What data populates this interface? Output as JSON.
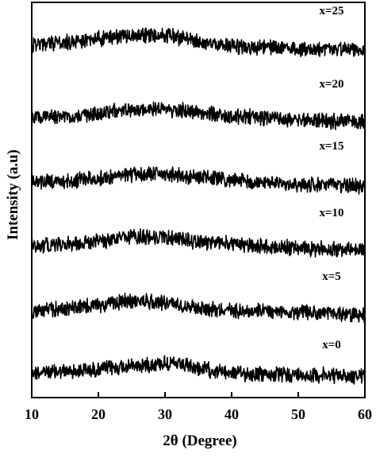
{
  "chart_data": {
    "type": "line",
    "xlabel": "2θ (Degree)",
    "ylabel": "Intensity (a.u)",
    "xlim": [
      10,
      60
    ],
    "x_ticks": [
      10,
      20,
      30,
      40,
      50,
      60
    ],
    "y_ticks": "none",
    "grid": false,
    "stacked_offset": true,
    "noisy_traces": true,
    "line_color": "#000000",
    "series": [
      {
        "name": "x=0",
        "points": [
          [
            10,
            0.3
          ],
          [
            15,
            0.34
          ],
          [
            20,
            0.42
          ],
          [
            25,
            0.55
          ],
          [
            30,
            0.68
          ],
          [
            35,
            0.45
          ],
          [
            40,
            0.28
          ],
          [
            45,
            0.22
          ],
          [
            50,
            0.2
          ],
          [
            55,
            0.18
          ],
          [
            60,
            0.15
          ]
        ]
      },
      {
        "name": "x=5",
        "points": [
          [
            10,
            0.28
          ],
          [
            15,
            0.38
          ],
          [
            20,
            0.5
          ],
          [
            25,
            0.68
          ],
          [
            30,
            0.62
          ],
          [
            35,
            0.42
          ],
          [
            40,
            0.3
          ],
          [
            45,
            0.26
          ],
          [
            50,
            0.22
          ],
          [
            55,
            0.18
          ],
          [
            60,
            0.12
          ]
        ]
      },
      {
        "name": "x=10",
        "points": [
          [
            10,
            0.28
          ],
          [
            15,
            0.34
          ],
          [
            20,
            0.45
          ],
          [
            25,
            0.62
          ],
          [
            30,
            0.6
          ],
          [
            35,
            0.45
          ],
          [
            40,
            0.34
          ],
          [
            45,
            0.24
          ],
          [
            50,
            0.18
          ],
          [
            55,
            0.14
          ],
          [
            60,
            0.12
          ]
        ]
      },
      {
        "name": "x=15",
        "points": [
          [
            10,
            0.28
          ],
          [
            15,
            0.3
          ],
          [
            20,
            0.42
          ],
          [
            25,
            0.55
          ],
          [
            30,
            0.62
          ],
          [
            35,
            0.48
          ],
          [
            40,
            0.35
          ],
          [
            45,
            0.25
          ],
          [
            50,
            0.18
          ],
          [
            55,
            0.15
          ],
          [
            60,
            0.12
          ]
        ]
      },
      {
        "name": "x=20",
        "points": [
          [
            10,
            0.3
          ],
          [
            15,
            0.34
          ],
          [
            20,
            0.48
          ],
          [
            25,
            0.62
          ],
          [
            30,
            0.68
          ],
          [
            35,
            0.52
          ],
          [
            40,
            0.38
          ],
          [
            45,
            0.3
          ],
          [
            50,
            0.24
          ],
          [
            55,
            0.18
          ],
          [
            60,
            0.15
          ]
        ]
      },
      {
        "name": "x=25",
        "points": [
          [
            10,
            0.34
          ],
          [
            15,
            0.45
          ],
          [
            20,
            0.6
          ],
          [
            25,
            0.75
          ],
          [
            30,
            0.72
          ],
          [
            35,
            0.5
          ],
          [
            40,
            0.32
          ],
          [
            45,
            0.26
          ],
          [
            50,
            0.22
          ],
          [
            55,
            0.18
          ],
          [
            60,
            0.15
          ]
        ]
      }
    ]
  }
}
